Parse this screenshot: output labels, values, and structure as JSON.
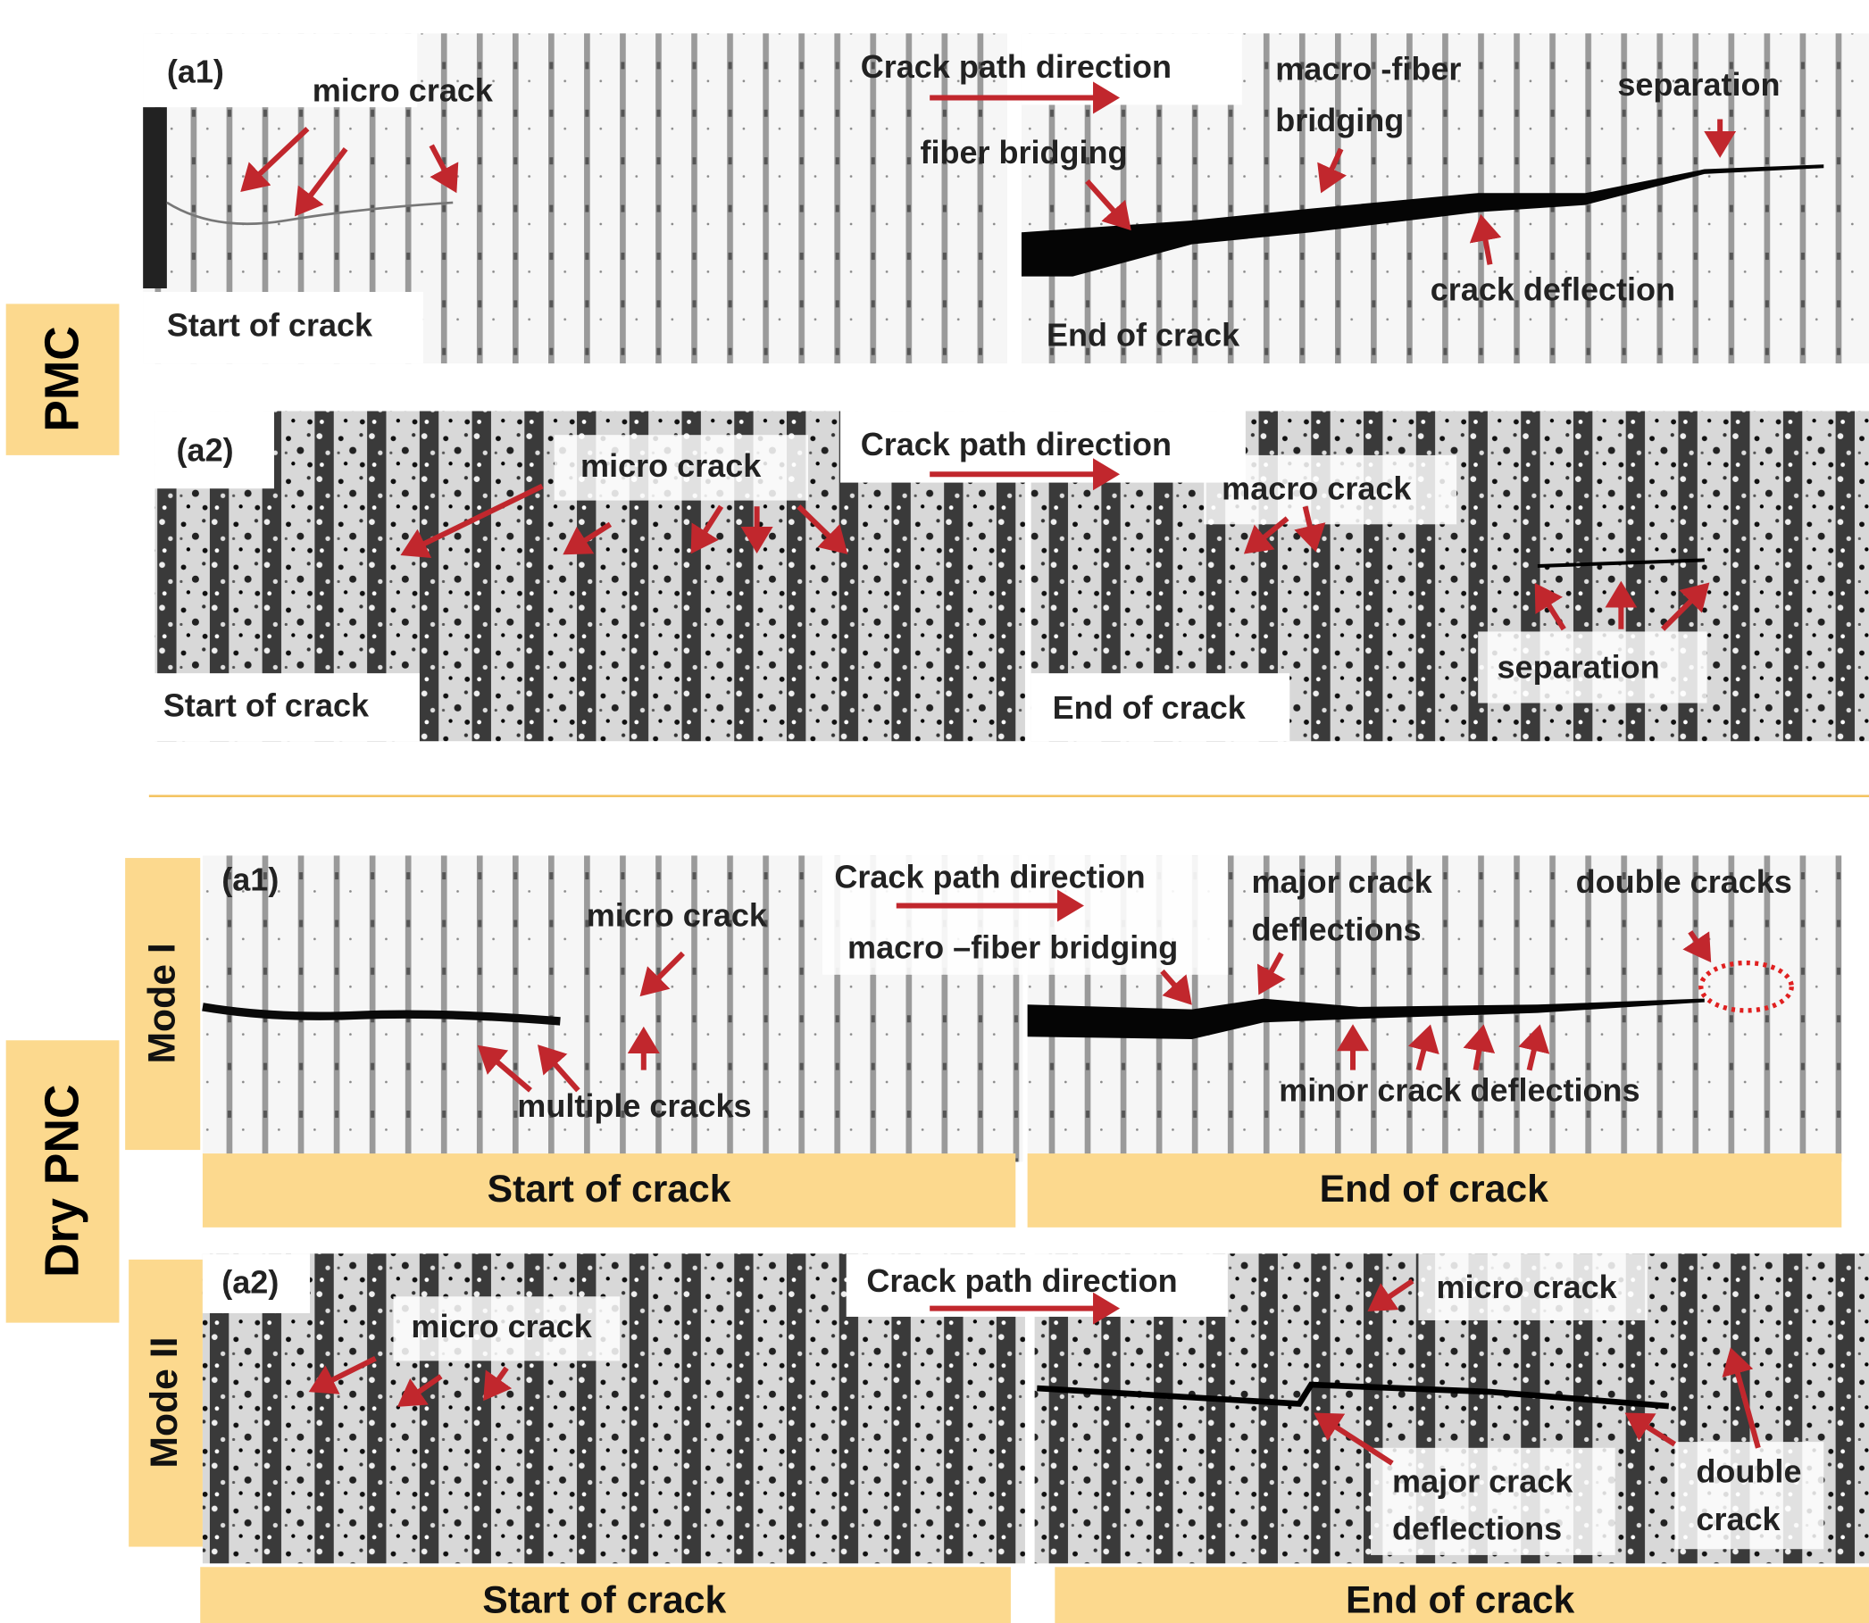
{
  "side_labels": {
    "pmc": "PMC",
    "dry_pnc": "Dry PNC",
    "mode_1": "Mode I",
    "mode_2": "Mode II"
  },
  "pmc": {
    "a1": {
      "panel": "(a1)",
      "micro_crack": "micro crack",
      "direction": "Crack path direction",
      "macro_fiber_bridging": [
        "macro -fiber",
        "bridging"
      ],
      "separation": "separation",
      "fiber_bridging": "fiber bridging",
      "crack_deflection": "crack deflection",
      "start": "Start of crack",
      "end": "End of crack"
    },
    "a2": {
      "panel": "(a2)",
      "micro_crack": "micro crack",
      "direction": "Crack path direction",
      "macro_crack": "macro crack",
      "separation": "separation",
      "start": "Start of crack",
      "end": "End of crack"
    }
  },
  "dry_pnc": {
    "a1": {
      "panel": "(a1)",
      "direction": "Crack path direction",
      "major_crack_deflections": [
        "major crack",
        "deflections"
      ],
      "double_cracks": "double cracks",
      "micro_crack": "micro crack",
      "macro_fiber_bridging": "macro –fiber bridging",
      "multiple_cracks": "multiple cracks",
      "minor_crack_deflections": "minor crack deflections",
      "start": "Start of crack",
      "end": "End of crack"
    },
    "a2": {
      "panel": "(a2)",
      "direction": "Crack path direction",
      "micro_crack_left": "micro crack",
      "micro_crack_right": "micro crack",
      "major_crack_deflections": [
        "major crack",
        "deflections"
      ],
      "double_crack": [
        "double",
        "crack"
      ],
      "start": "Start of crack",
      "end": "End of crack"
    }
  }
}
